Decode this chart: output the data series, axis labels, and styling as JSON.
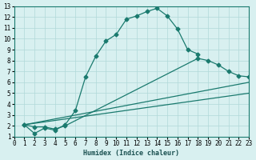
{
  "line1_x": [
    1,
    2,
    3,
    4,
    5,
    6,
    7,
    8,
    9,
    10,
    11,
    12,
    13,
    14,
    15,
    16,
    17,
    18
  ],
  "line1_y": [
    2.1,
    1.3,
    1.8,
    1.6,
    2.1,
    3.4,
    6.5,
    8.4,
    9.8,
    10.4,
    11.8,
    12.1,
    12.5,
    12.8,
    12.1,
    10.9,
    9.0,
    8.6
  ],
  "line2_x": [
    1,
    2,
    3,
    4,
    5,
    18,
    19,
    20,
    21,
    22,
    23
  ],
  "line2_y": [
    2.1,
    1.9,
    1.9,
    1.7,
    2.0,
    8.2,
    8.0,
    7.6,
    7.0,
    6.6,
    6.5
  ],
  "line3_x": [
    1,
    23
  ],
  "line3_y": [
    2.1,
    6.0
  ],
  "line4_x": [
    1,
    23
  ],
  "line4_y": [
    2.1,
    5.0
  ],
  "bg_color": "#d8f0f0",
  "line_color": "#1a7a6e",
  "grid_color": "#b0d8d8",
  "xlabel": "Humidex (Indice chaleur)",
  "ylabel": "",
  "xlim": [
    0,
    23
  ],
  "ylim": [
    1,
    13
  ],
  "xticks": [
    0,
    1,
    2,
    3,
    4,
    5,
    6,
    7,
    8,
    9,
    10,
    11,
    12,
    13,
    14,
    15,
    16,
    17,
    18,
    19,
    20,
    21,
    22,
    23
  ],
  "yticks": [
    1,
    2,
    3,
    4,
    5,
    6,
    7,
    8,
    9,
    10,
    11,
    12,
    13
  ]
}
